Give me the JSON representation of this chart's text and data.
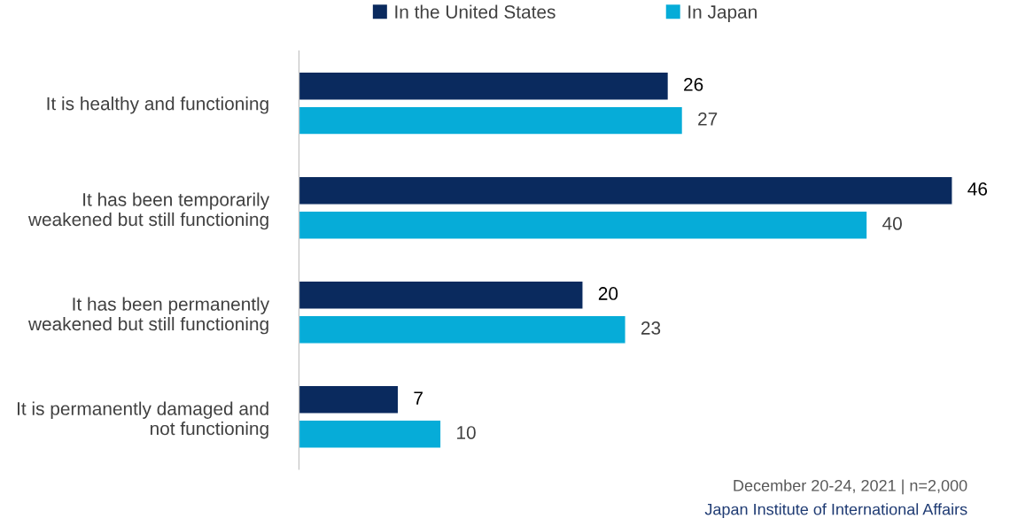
{
  "chart_data": {
    "type": "bar",
    "orientation": "horizontal",
    "categories": [
      "It is healthy and functioning",
      "It has been temporarily\nweakened but still functioning",
      "It has been permanently\nweakened but still functioning",
      "It is permanently damaged and\nnot functioning"
    ],
    "series": [
      {
        "name": "In the United States",
        "color": "#0a2a5e",
        "values": [
          26,
          46,
          20,
          7
        ]
      },
      {
        "name": "In Japan",
        "color": "#06acd8",
        "values": [
          27,
          40,
          23,
          10
        ]
      }
    ],
    "data_labels": true,
    "legend": "top",
    "grid": false,
    "tick_labels": "y",
    "annotations": [
      "December 20-24, 2021 | n=2,000",
      "Japan Institute of International Affairs"
    ]
  }
}
